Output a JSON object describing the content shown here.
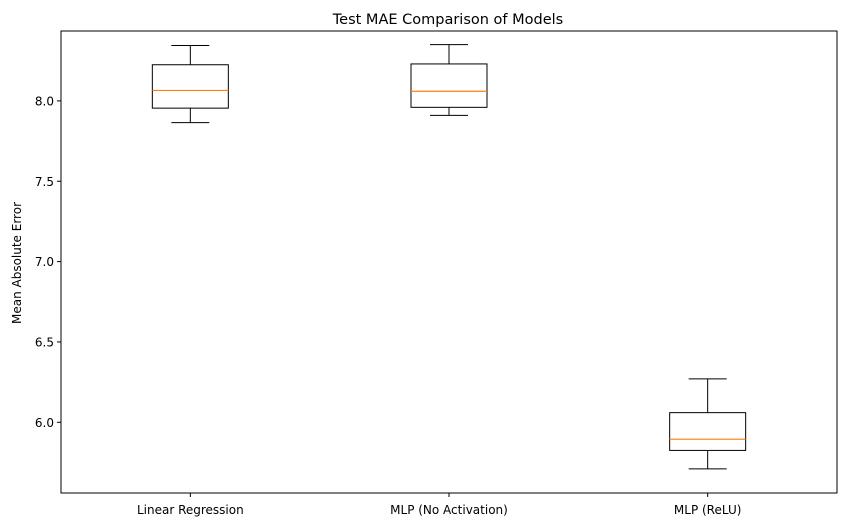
{
  "chart_data": {
    "type": "box",
    "title": "Test MAE Comparison of Models",
    "xlabel": "",
    "ylabel": "Mean Absolute Error",
    "categories": [
      "Linear Regression",
      "MLP (No Activation)",
      "MLP (ReLU)"
    ],
    "yticks": [
      "6.0",
      "6.5",
      "7.0",
      "7.5",
      "8.0"
    ],
    "ytick_values": [
      6.0,
      6.5,
      7.0,
      7.5,
      8.0
    ],
    "ylim": [
      5.56,
      8.435
    ],
    "grid": false,
    "box_color": "#000000",
    "median_color": "#ff7f0e",
    "boxes": [
      {
        "name": "Linear Regression",
        "whisker_low": 7.865,
        "q1": 7.955,
        "median": 8.065,
        "q3": 8.225,
        "whisker_high": 8.345
      },
      {
        "name": "MLP (No Activation)",
        "whisker_low": 7.91,
        "q1": 7.96,
        "median": 8.06,
        "q3": 8.23,
        "whisker_high": 8.35
      },
      {
        "name": "MLP (ReLU)",
        "whisker_low": 5.71,
        "q1": 5.825,
        "median": 5.895,
        "q3": 6.06,
        "whisker_high": 6.27
      }
    ]
  }
}
